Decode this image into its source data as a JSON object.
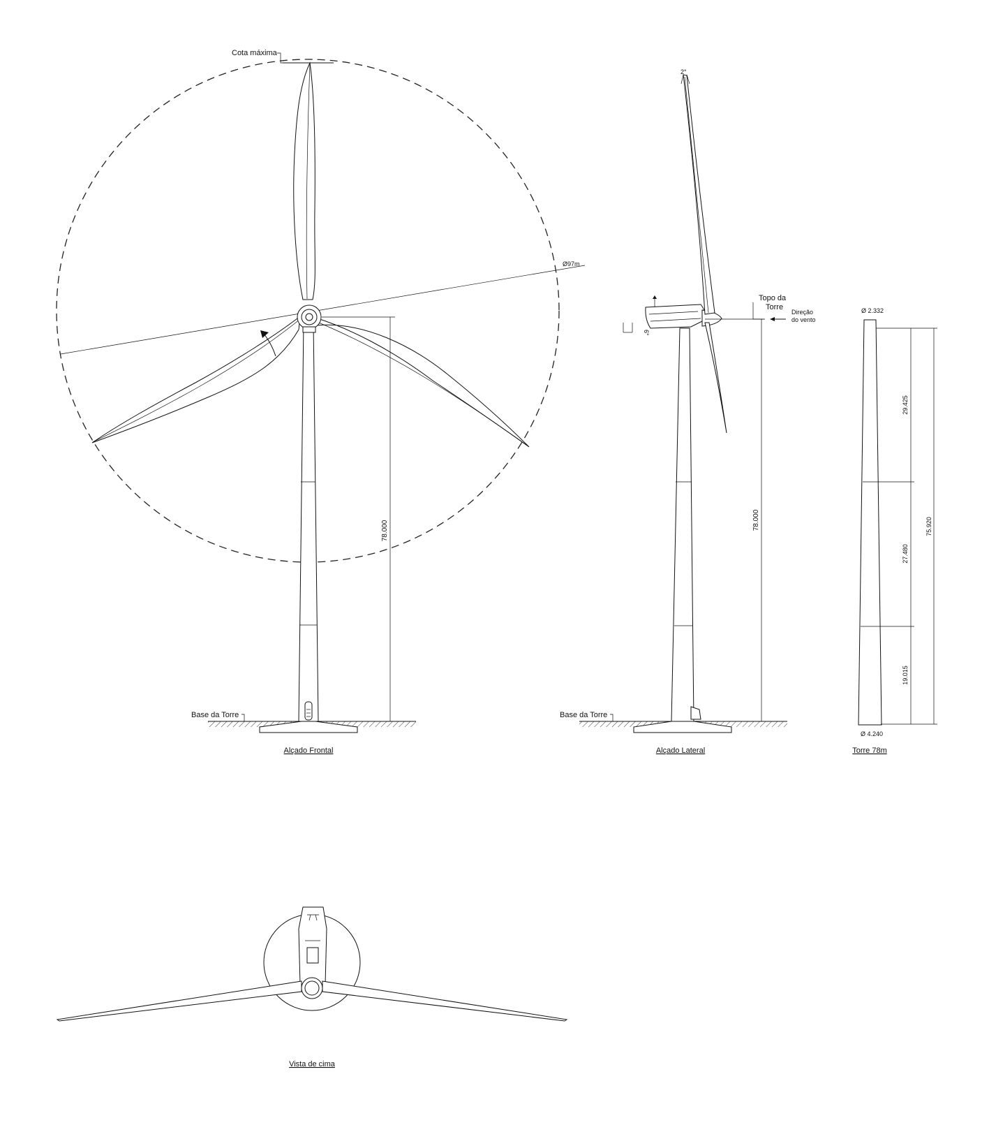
{
  "drawing": {
    "labels": {
      "cota_maxima": "Cota máxima",
      "diameter": "Ø97m",
      "base_torre": "Base da Torre",
      "base_torre_lateral": "Base da Torre",
      "topo_torre_line1": "Topo da",
      "topo_torre_line2": "Torre",
      "wind_dir_line1": "Direção",
      "wind_dir_line2": "do vento",
      "tilt_angle": "6°",
      "cone_angle": "2°",
      "height_front": "78.000",
      "height_side": "78.000"
    },
    "tower": {
      "top_diameter": "Ø 2.332",
      "bottom_diameter": "Ø 4.240",
      "section_top": "29.425",
      "section_middle": "27.480",
      "section_bottom": "19.015",
      "total": "75.920"
    },
    "titles": {
      "front": "Alçado  Frontal",
      "side": "Alçado  Lateral",
      "tower": "Torre 78m",
      "top": "Vista de cima"
    }
  }
}
